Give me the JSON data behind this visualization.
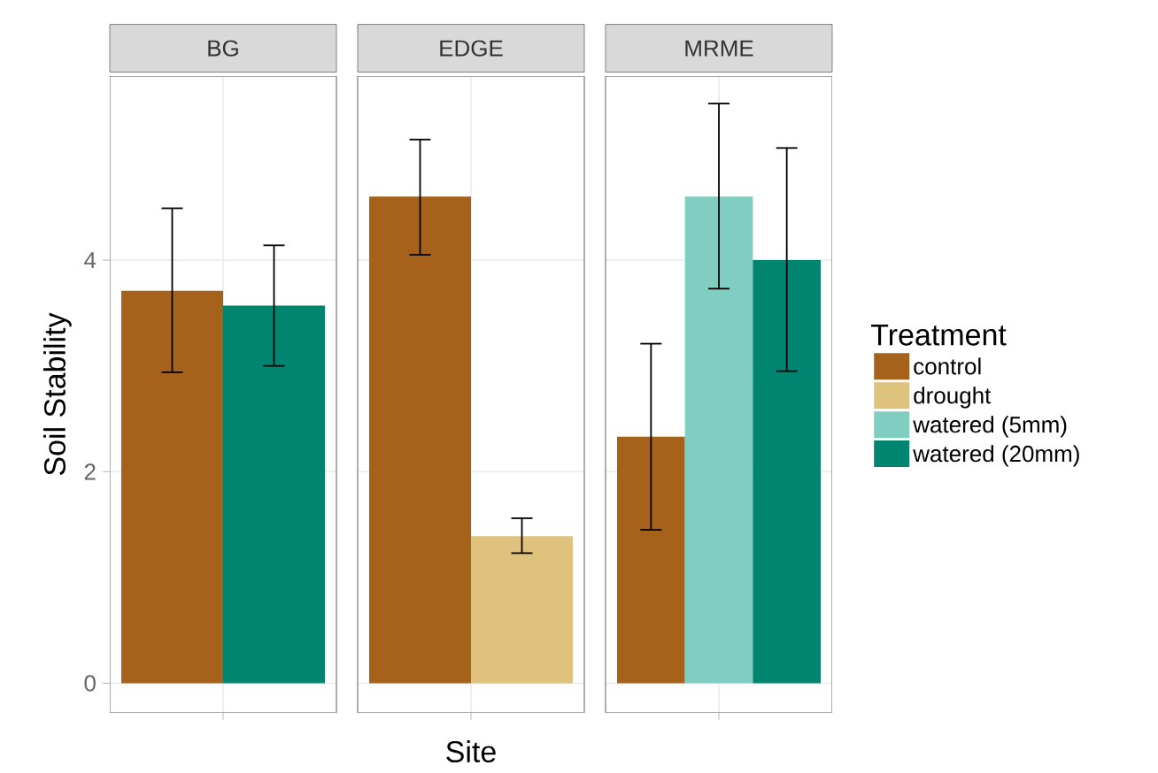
{
  "chart_data": {
    "type": "bar",
    "xlabel": "Site",
    "ylabel": "Soil Stability",
    "legend_title": "Treatment",
    "categories": [
      "BG",
      "EDGE",
      "MRME"
    ],
    "ylim": [
      -0.28,
      5.74
    ],
    "yticks": [
      0,
      2,
      4
    ],
    "grid": true,
    "legend": "right",
    "series": [
      {
        "name": "control",
        "color": "#a6611a",
        "values": [
          3.71,
          4.6,
          2.33
        ],
        "errors": [
          [
            2.94,
            4.49
          ],
          [
            4.05,
            5.14
          ],
          [
            1.45,
            3.21
          ]
        ]
      },
      {
        "name": "drought",
        "color": "#dfc27d",
        "values": [
          null,
          1.39,
          null
        ],
        "errors": [
          null,
          [
            1.23,
            1.56
          ],
          null
        ]
      },
      {
        "name": "watered (5mm)",
        "color": "#80cdc1",
        "values": [
          null,
          null,
          4.6
        ],
        "errors": [
          null,
          null,
          [
            3.73,
            5.48
          ]
        ]
      },
      {
        "name": "watered (20mm)",
        "color": "#018571",
        "values": [
          3.57,
          null,
          4.0
        ],
        "errors": [
          [
            3.0,
            4.14
          ],
          null,
          [
            2.95,
            5.06
          ]
        ]
      }
    ]
  }
}
